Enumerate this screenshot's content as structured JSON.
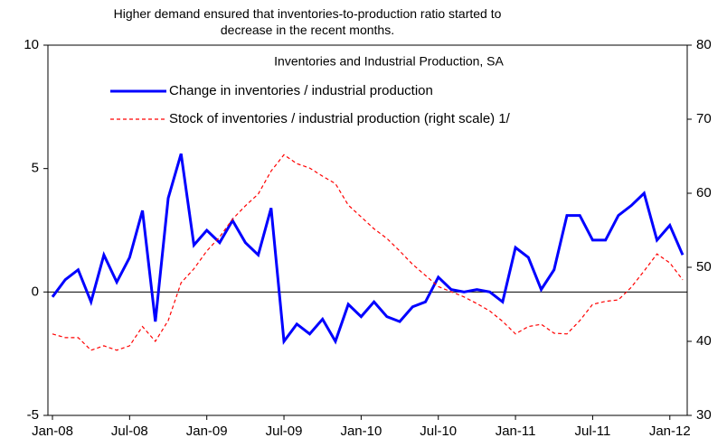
{
  "chart_data": {
    "type": "line",
    "title": "Higher demand ensured that inventories-to-production ratio started to decrease in the recent months.",
    "subtitle": "Inventories and Industrial Production, SA",
    "categories": [
      "Jan-08",
      null,
      null,
      null,
      null,
      null,
      "Jul-08",
      null,
      null,
      null,
      null,
      null,
      "Jan-09",
      null,
      null,
      null,
      null,
      null,
      "Jul-09",
      null,
      null,
      null,
      null,
      null,
      "Jan-10",
      null,
      null,
      null,
      null,
      null,
      "Jul-10",
      null,
      null,
      null,
      null,
      null,
      "Jan-11",
      null,
      null,
      null,
      null,
      null,
      "Jul-11",
      null,
      null,
      null,
      null,
      null,
      "Jan-12",
      null
    ],
    "series": [
      {
        "name": "Change in inventories / industrial production",
        "color": "#0000ff",
        "style": "solid",
        "values": [
          -0.2,
          0.5,
          0.9,
          -0.4,
          1.5,
          0.4,
          1.4,
          3.3,
          -1.2,
          3.8,
          5.6,
          1.9,
          2.5,
          2.0,
          2.9,
          2.0,
          1.5,
          3.4,
          -2.0,
          -1.3,
          -1.7,
          -1.1,
          -2.0,
          -0.5,
          -1.0,
          -0.4,
          -1.0,
          -1.2,
          -0.6,
          -0.4,
          0.6,
          0.1,
          0.0,
          0.1,
          0.0,
          -0.4,
          1.8,
          1.4,
          0.1,
          0.9,
          3.1,
          3.1,
          2.1,
          2.1,
          3.1,
          3.5,
          4.0,
          2.1,
          2.7,
          1.5
        ]
      },
      {
        "name": "Stock of inventories / industrial production (right scale) 1/",
        "color": "#ff0000",
        "style": "dashed",
        "axis": "y2",
        "values": [
          41,
          40.5,
          40.5,
          38.8,
          39.4,
          38.8,
          39.4,
          42,
          40,
          42.8,
          47.9,
          49.8,
          52.2,
          54.1,
          56.5,
          58.3,
          59.9,
          63,
          65.2,
          64,
          63.4,
          62.3,
          61.3,
          58.4,
          56.8,
          55.2,
          53.9,
          52.2,
          50.4,
          48.9,
          47.4,
          46.7,
          46,
          45.1,
          44.1,
          42.7,
          41,
          42,
          42.3,
          41.1,
          41,
          42.8,
          45,
          45.4,
          45.6,
          47.3,
          49.5,
          51.8,
          50.6,
          48.3
        ]
      }
    ],
    "ylim": [
      -5,
      10
    ],
    "yticks": [
      -5,
      0,
      5,
      10
    ],
    "y2lim": [
      30,
      80
    ],
    "y2ticks": [
      30,
      40,
      50,
      60,
      70,
      80
    ],
    "legend": "top-left"
  }
}
